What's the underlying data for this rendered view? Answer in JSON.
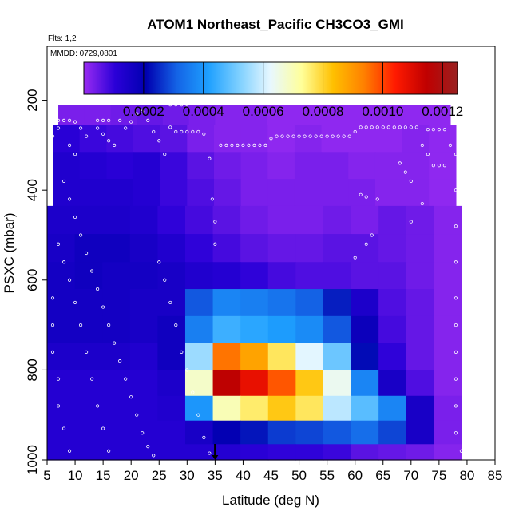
{
  "chart_data": {
    "type": "heatmap",
    "title": "ATOM1 Northeast_Pacific CH3CO3_GMI",
    "flights_note": "Flts: 1,2",
    "date_note": "MMDD: 0729,0801",
    "xlabel": "Latitude (deg N)",
    "ylabel": "PSXC (mbar)",
    "xlim": [
      5,
      85
    ],
    "ylim": [
      1000,
      80
    ],
    "y_reversed": true,
    "x_ticks": [
      5,
      10,
      15,
      20,
      25,
      30,
      35,
      40,
      45,
      50,
      55,
      60,
      65,
      70,
      75,
      80,
      85
    ],
    "y_ticks": [
      200,
      400,
      600,
      800,
      1000
    ],
    "colorbar": {
      "range": [
        0,
        0.00125
      ],
      "tick_labels": [
        "0.0002",
        "0.0004",
        "0.0006",
        "0.0008",
        "0.0010",
        "0.0012"
      ],
      "tick_values": [
        0.0002,
        0.0004,
        0.0006,
        0.0008,
        0.001,
        0.0012
      ],
      "colors": [
        "#9a2cf2",
        "#2b00d8",
        "#0000b0",
        "#1464e6",
        "#1ea0ff",
        "#7fd0ff",
        "#e8f8ff",
        "#ffff99",
        "#ffc000",
        "#ff8000",
        "#ff1a00",
        "#c00000",
        "#9a2020"
      ]
    },
    "marker_latitude": 35,
    "levels": [
      {
        "p": 225,
        "lat_range": [
          7,
          77
        ],
        "values": [
          3e-05,
          3e-05,
          4e-05,
          5e-05,
          4e-05,
          3e-05,
          2e-05,
          2e-05,
          1e-05,
          1e-05,
          1e-05,
          1e-05,
          1e-05,
          1e-05,
          1e-05
        ]
      },
      {
        "p": 285,
        "lat_range": [
          6,
          78
        ],
        "values": [
          0.00011,
          9e-05,
          8e-05,
          7e-05,
          6e-05,
          3e-05,
          2e-05,
          2e-05,
          1e-05,
          2e-05,
          1e-05,
          1e-05,
          1e-05,
          2e-05,
          1e-05
        ]
      },
      {
        "p": 345,
        "lat_range": [
          6,
          78
        ],
        "values": [
          0.00013,
          0.00012,
          0.00011,
          0.00012,
          9e-05,
          6e-05,
          4e-05,
          3e-05,
          2e-05,
          3e-05,
          3e-05,
          2e-05,
          2e-05,
          2e-05,
          1e-05
        ]
      },
      {
        "p": 405,
        "lat_range": [
          6,
          78
        ],
        "values": [
          0.00013,
          0.00013,
          0.00013,
          0.00012,
          9e-05,
          7e-05,
          5e-05,
          3e-05,
          3e-05,
          3e-05,
          3e-05,
          3e-05,
          2e-05,
          2e-05,
          1e-05
        ]
      },
      {
        "p": 465,
        "lat_range": [
          5,
          79
        ],
        "values": [
          0.00014,
          0.00014,
          0.00014,
          0.00013,
          0.0001,
          8e-05,
          6e-05,
          4e-05,
          3e-05,
          3e-05,
          4e-05,
          3e-05,
          5e-05,
          4e-05,
          2e-05
        ]
      },
      {
        "p": 530,
        "lat_range": [
          5,
          79
        ],
        "values": [
          0.00015,
          0.00017,
          0.00017,
          0.00015,
          0.00013,
          0.0001,
          8e-05,
          6e-05,
          5e-05,
          5e-05,
          6e-05,
          6e-05,
          5e-05,
          4e-05,
          2e-05
        ]
      },
      {
        "p": 590,
        "lat_range": [
          5,
          79
        ],
        "values": [
          0.00016,
          0.00017,
          0.00016,
          0.00016,
          0.00015,
          0.00013,
          0.00012,
          0.0001,
          8e-05,
          7e-05,
          7e-05,
          6e-05,
          6e-05,
          4e-05,
          2e-05
        ]
      },
      {
        "p": 650,
        "lat_range": [
          5,
          79
        ],
        "values": [
          0.00016,
          0.00016,
          0.00016,
          0.00015,
          0.00015,
          0.0003,
          0.00037,
          0.00036,
          0.00034,
          0.00031,
          0.00024,
          0.00014,
          7e-05,
          5e-05,
          2e-05
        ]
      },
      {
        "p": 710,
        "lat_range": [
          5,
          79
        ],
        "values": [
          0.00016,
          0.00016,
          0.00016,
          0.00015,
          0.00017,
          0.00036,
          0.00045,
          0.00043,
          0.00041,
          0.00038,
          0.0003,
          0.00018,
          8e-05,
          5e-05,
          2e-05
        ]
      },
      {
        "p": 770,
        "lat_range": [
          5,
          79
        ],
        "values": [
          0.00014,
          0.00014,
          0.00014,
          0.00013,
          0.00017,
          0.00055,
          0.00095,
          0.00088,
          0.00077,
          0.00062,
          0.0005,
          0.00022,
          0.0001,
          5e-05,
          2e-05
        ]
      },
      {
        "p": 830,
        "lat_range": [
          5,
          79
        ],
        "values": [
          0.00012,
          0.00012,
          0.00012,
          0.00012,
          0.00014,
          0.00068,
          0.00115,
          0.00108,
          0.00098,
          0.00082,
          0.00064,
          0.00037,
          0.00015,
          7e-05,
          2e-05
        ]
      },
      {
        "p": 885,
        "lat_range": [
          5,
          79
        ],
        "values": [
          0.00012,
          0.00012,
          0.00012,
          0.00012,
          0.00013,
          0.0004,
          0.0007,
          0.00076,
          0.00082,
          0.00077,
          0.00058,
          0.00048,
          0.00037,
          0.00015,
          3e-05
        ]
      },
      {
        "p": 940,
        "lat_range": [
          5,
          79
        ],
        "values": [
          0.00012,
          0.00012,
          0.00012,
          0.00012,
          0.00012,
          0.00015,
          0.0002,
          0.00023,
          0.00027,
          0.00028,
          0.0003,
          0.00033,
          0.00028,
          0.00015,
          3e-05
        ]
      },
      {
        "p": 990,
        "lat_range": [
          5,
          79
        ],
        "values": [
          0.00012,
          0.00012,
          0.00012,
          0.00012,
          0.00012,
          0.00012,
          0.00012,
          0.00011,
          0.0001,
          0.0001,
          9e-05,
          6e-05,
          5e-05,
          4e-05,
          2e-05
        ]
      }
    ],
    "flight_track_points": [
      [
        7,
        245
      ],
      [
        8,
        245
      ],
      [
        9,
        245
      ],
      [
        10,
        248
      ],
      [
        7,
        262
      ],
      [
        6,
        280
      ],
      [
        11,
        262
      ],
      [
        12,
        280
      ],
      [
        9,
        300
      ],
      [
        10,
        320
      ],
      [
        14,
        245
      ],
      [
        15,
        245
      ],
      [
        16,
        245
      ],
      [
        14,
        262
      ],
      [
        15,
        275
      ],
      [
        16,
        290
      ],
      [
        17,
        300
      ],
      [
        18,
        245
      ],
      [
        19,
        262
      ],
      [
        20,
        248
      ],
      [
        21,
        230
      ],
      [
        22,
        225
      ],
      [
        23,
        245
      ],
      [
        24,
        270
      ],
      [
        25,
        290
      ],
      [
        26,
        320
      ],
      [
        27,
        260
      ],
      [
        28,
        270
      ],
      [
        29,
        270
      ],
      [
        30,
        270
      ],
      [
        31,
        270
      ],
      [
        32,
        270
      ],
      [
        33,
        275
      ],
      [
        34,
        330
      ],
      [
        34.5,
        420
      ],
      [
        35,
        470
      ],
      [
        35,
        520
      ],
      [
        36,
        300
      ],
      [
        37,
        300
      ],
      [
        38,
        300
      ],
      [
        39,
        300
      ],
      [
        40,
        300
      ],
      [
        41,
        300
      ],
      [
        42,
        300
      ],
      [
        43,
        300
      ],
      [
        44,
        300
      ],
      [
        45,
        285
      ],
      [
        46,
        280
      ],
      [
        47,
        280
      ],
      [
        48,
        280
      ],
      [
        49,
        280
      ],
      [
        50,
        280
      ],
      [
        51,
        280
      ],
      [
        52,
        280
      ],
      [
        53,
        280
      ],
      [
        54,
        280
      ],
      [
        55,
        280
      ],
      [
        56,
        280
      ],
      [
        57,
        280
      ],
      [
        58,
        280
      ],
      [
        59,
        280
      ],
      [
        60,
        270
      ],
      [
        61,
        260
      ],
      [
        62,
        260
      ],
      [
        63,
        260
      ],
      [
        64,
        260
      ],
      [
        65,
        260
      ],
      [
        66,
        260
      ],
      [
        67,
        260
      ],
      [
        68,
        260
      ],
      [
        69,
        260
      ],
      [
        70,
        260
      ],
      [
        71,
        260
      ],
      [
        73,
        265
      ],
      [
        74,
        265
      ],
      [
        75,
        265
      ],
      [
        76,
        265
      ],
      [
        27,
        210
      ],
      [
        28,
        210
      ],
      [
        29,
        210
      ],
      [
        30,
        210
      ],
      [
        31,
        205
      ],
      [
        32,
        205
      ],
      [
        33,
        205
      ],
      [
        34,
        205
      ],
      [
        8,
        380
      ],
      [
        9,
        420
      ],
      [
        10,
        460
      ],
      [
        11,
        500
      ],
      [
        12,
        540
      ],
      [
        13,
        580
      ],
      [
        14,
        620
      ],
      [
        15,
        660
      ],
      [
        16,
        700
      ],
      [
        17,
        740
      ],
      [
        18,
        780
      ],
      [
        19,
        820
      ],
      [
        20,
        860
      ],
      [
        21,
        900
      ],
      [
        22,
        940
      ],
      [
        23,
        970
      ],
      [
        24,
        990
      ],
      [
        7,
        520
      ],
      [
        8,
        560
      ],
      [
        9,
        600
      ],
      [
        10,
        650
      ],
      [
        11,
        700
      ],
      [
        12,
        760
      ],
      [
        13,
        820
      ],
      [
        14,
        880
      ],
      [
        15,
        930
      ],
      [
        16,
        980
      ],
      [
        6,
        640
      ],
      [
        6,
        700
      ],
      [
        6,
        760
      ],
      [
        7,
        820
      ],
      [
        7,
        880
      ],
      [
        8,
        930
      ],
      [
        9,
        980
      ],
      [
        25,
        560
      ],
      [
        26,
        600
      ],
      [
        27,
        650
      ],
      [
        28,
        700
      ],
      [
        29,
        760
      ],
      [
        30,
        800
      ],
      [
        31,
        850
      ],
      [
        32,
        900
      ],
      [
        33,
        950
      ],
      [
        34,
        985
      ],
      [
        61,
        410
      ],
      [
        62,
        415
      ],
      [
        64,
        420
      ],
      [
        68,
        340
      ],
      [
        69,
        360
      ],
      [
        70,
        380
      ],
      [
        72,
        300
      ],
      [
        73,
        320
      ],
      [
        74,
        345
      ],
      [
        75,
        345
      ],
      [
        76,
        345
      ],
      [
        77,
        300
      ],
      [
        78,
        320
      ],
      [
        78,
        400
      ],
      [
        78,
        480
      ],
      [
        78,
        560
      ],
      [
        78,
        640
      ],
      [
        78,
        700
      ],
      [
        78,
        760
      ],
      [
        78,
        820
      ],
      [
        78,
        880
      ],
      [
        78,
        940
      ],
      [
        79,
        980
      ],
      [
        72,
        430
      ],
      [
        70,
        470
      ],
      [
        63,
        500
      ],
      [
        62,
        520
      ],
      [
        60,
        550
      ]
    ]
  }
}
